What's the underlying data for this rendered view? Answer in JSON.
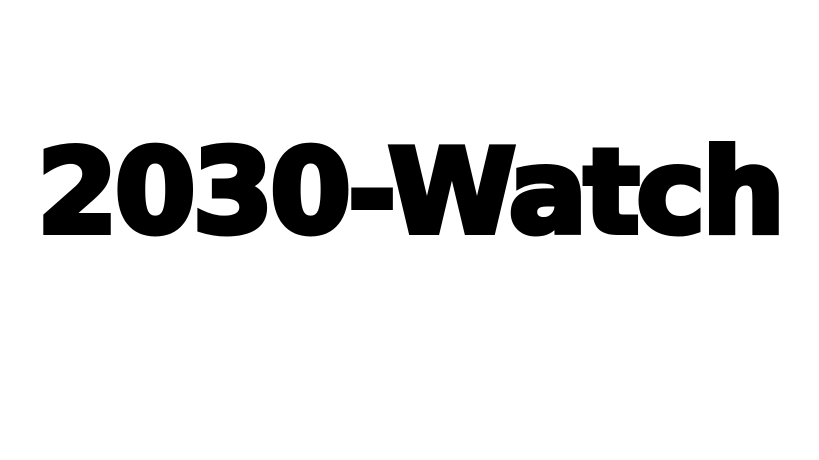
{
  "headline": {
    "text": "2030-Watch",
    "color": "#000000"
  },
  "background_color": "#ffffff"
}
